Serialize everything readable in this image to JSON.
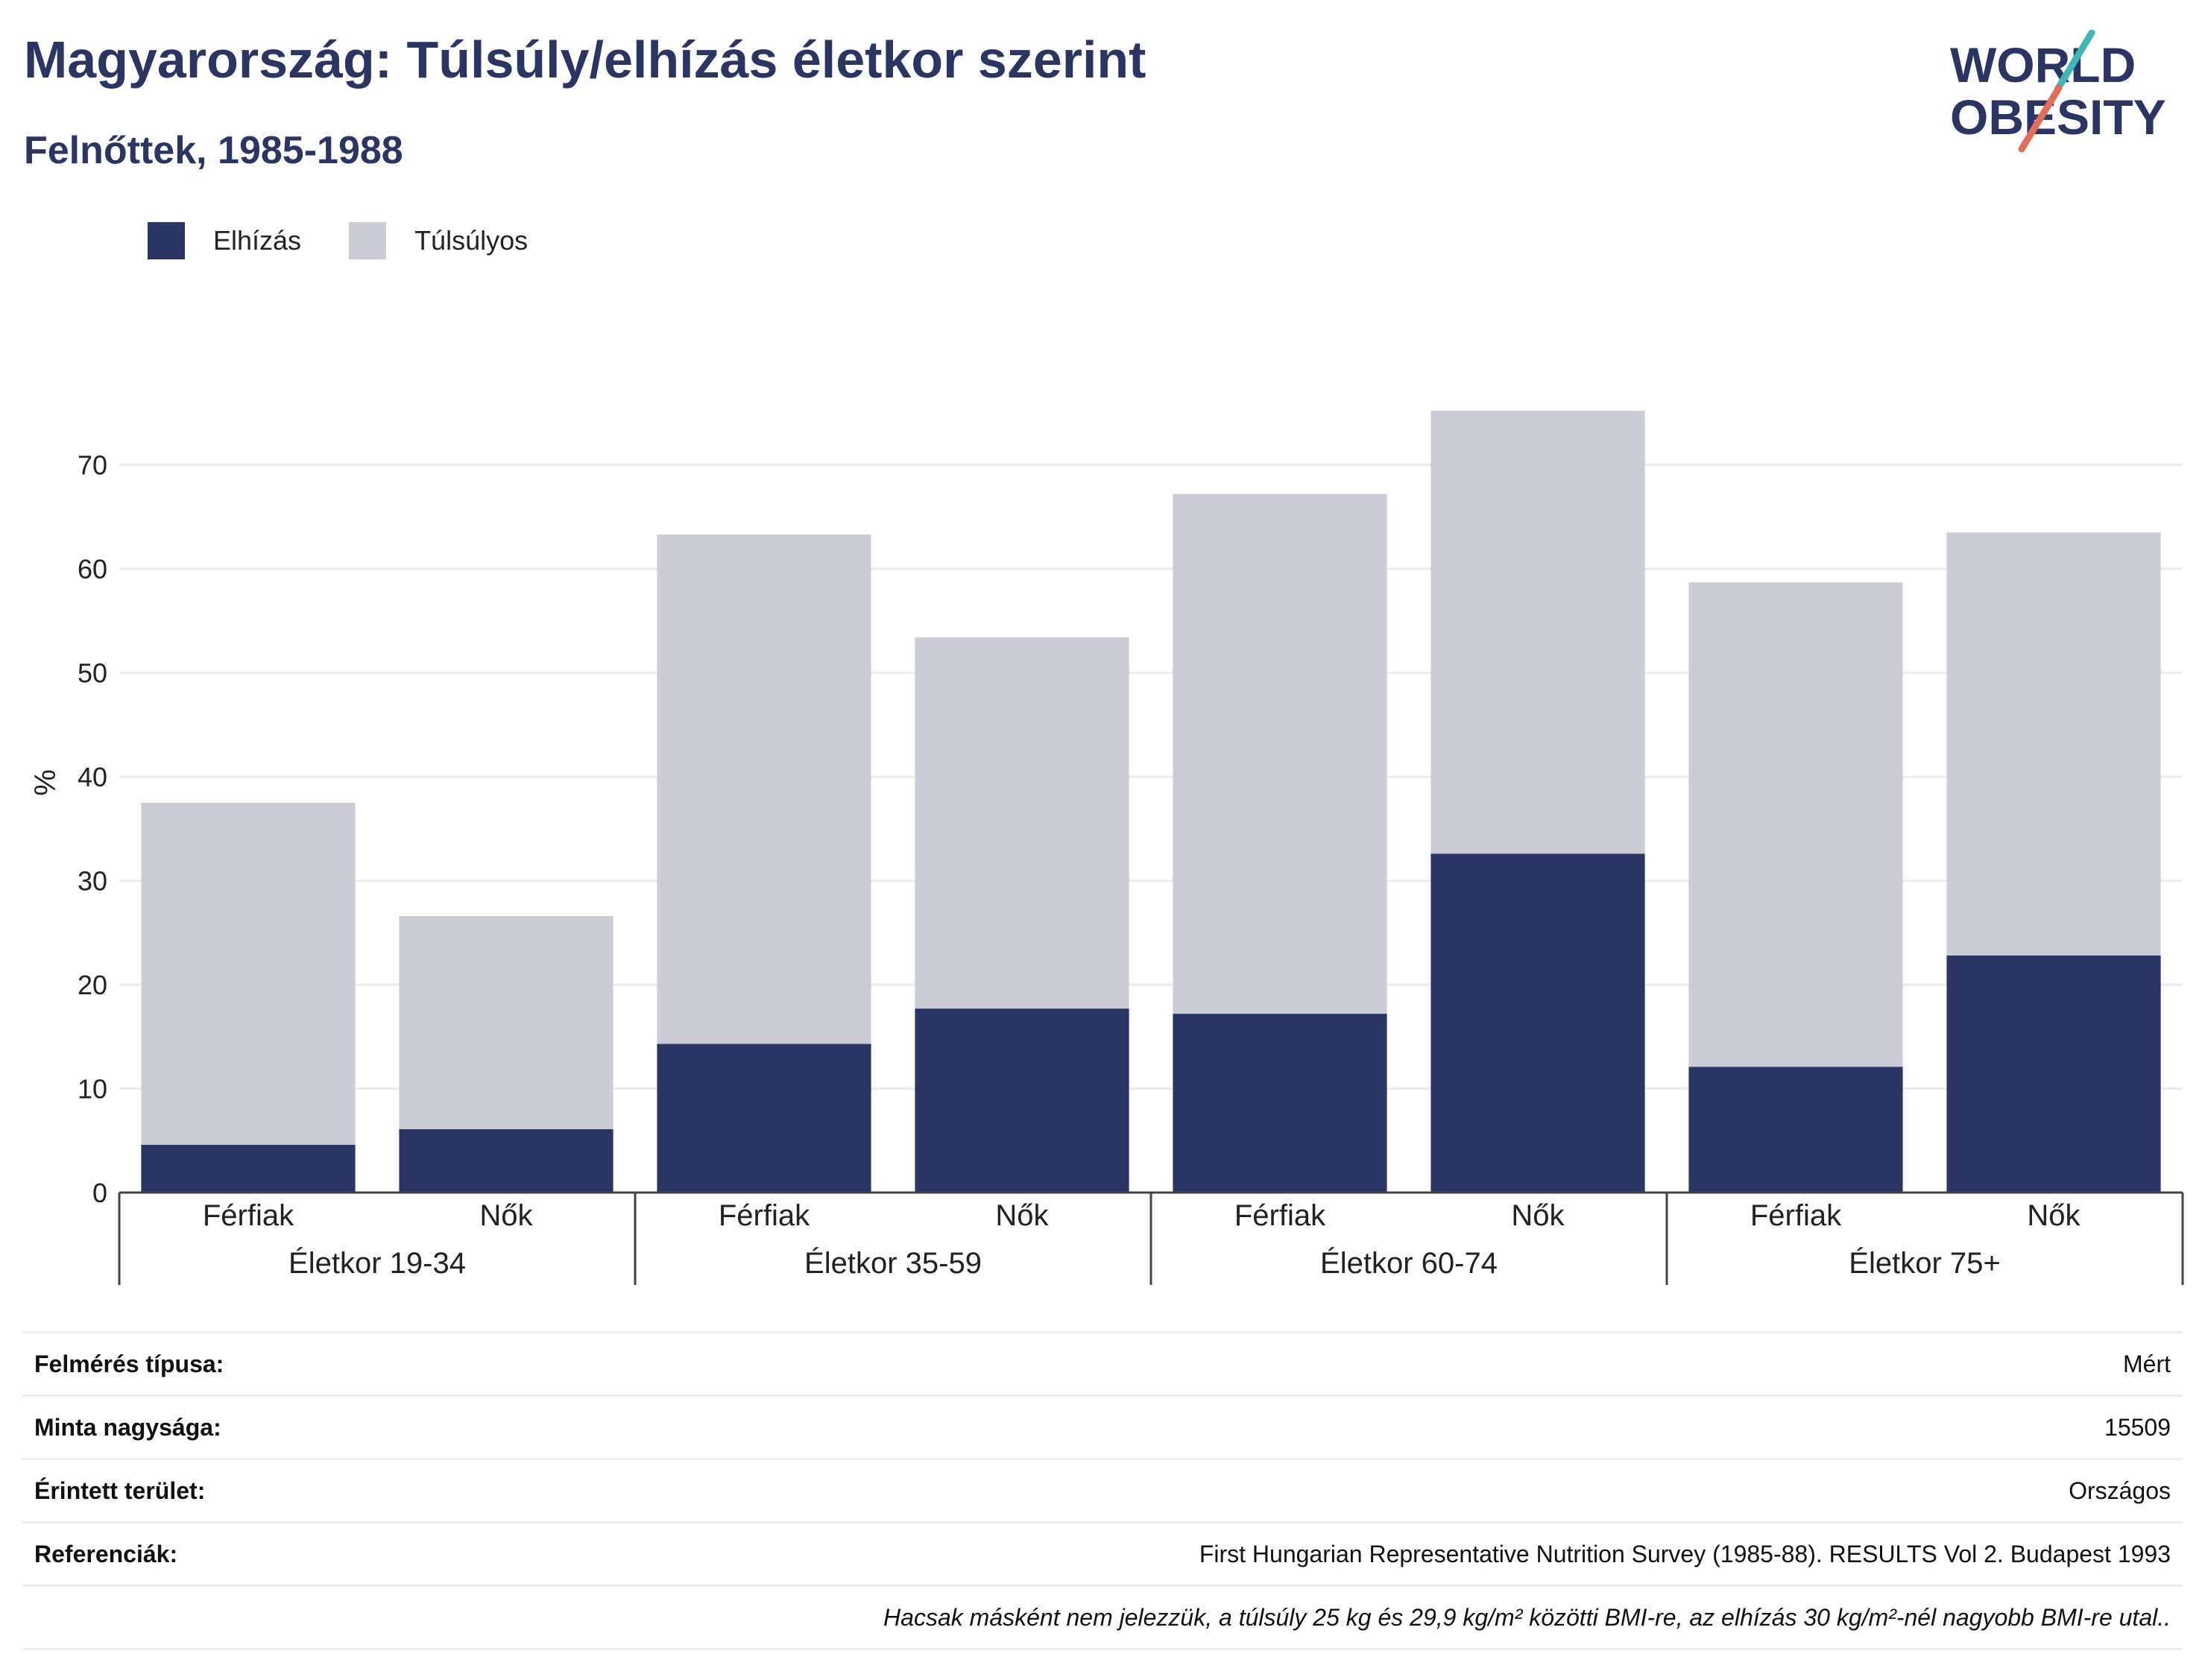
{
  "header": {
    "title": "Magyarország: Túlsúly/elhízás életkor szerint",
    "subtitle": "Felnőttek, 1985-1988"
  },
  "logo": {
    "line1": "WORLD",
    "line2": "OBESITY",
    "text_color": "#2b3563",
    "slash_colors": [
      "#e26d5a",
      "#3fb8b5"
    ]
  },
  "chart_data": {
    "type": "bar",
    "stacked": true,
    "ylabel": "%",
    "ylim": [
      0,
      76
    ],
    "yticks": [
      0,
      10,
      20,
      30,
      40,
      50,
      60,
      70
    ],
    "grid": true,
    "legend_position": "top-left",
    "groups": [
      "Életkor 19-34",
      "Életkor 35-59",
      "Életkor 60-74",
      "Életkor 75+"
    ],
    "categories": [
      "Férfiak",
      "Nők",
      "Férfiak",
      "Nők",
      "Férfiak",
      "Nők",
      "Férfiak",
      "Nők"
    ],
    "series": [
      {
        "name": "Elhízás",
        "color": "#2b3563",
        "values": [
          4.6,
          6.1,
          14.3,
          17.7,
          17.2,
          32.6,
          12.1,
          22.8
        ]
      },
      {
        "name": "Túlsúlyos",
        "color": "#cbccd8",
        "values": [
          32.9,
          20.5,
          49.0,
          35.7,
          50.0,
          42.6,
          46.6,
          40.7
        ]
      }
    ]
  },
  "info": {
    "rows": [
      {
        "label": "Felmérés típusa:",
        "value": "Mért"
      },
      {
        "label": "Minta nagysága:",
        "value": "15509"
      },
      {
        "label": "Érintett terület:",
        "value": "Országos"
      },
      {
        "label": "Referenciák:",
        "value": "First Hungarian Representative Nutrition Survey (1985-88). RESULTS Vol 2. Budapest 1993"
      }
    ],
    "note": "Hacsak másként nem jelezzük, a túlsúly 25 kg és 29,9 kg/m² közötti BMI-re, az elhízás 30 kg/m²-nél nagyobb BMI-re utal.."
  }
}
